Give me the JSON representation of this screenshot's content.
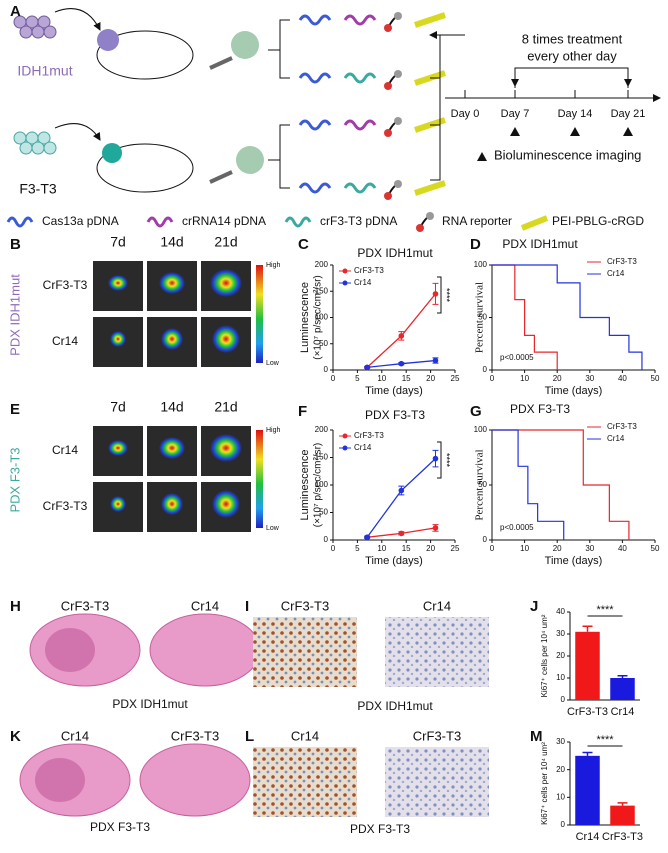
{
  "panel_labels": [
    "A",
    "B",
    "C",
    "D",
    "E",
    "F",
    "G",
    "H",
    "I",
    "J",
    "K",
    "L",
    "M"
  ],
  "schematic": {
    "tumors": [
      "IDH1mut",
      "F3-T3"
    ],
    "timeline": {
      "days": [
        "Day 0",
        "Day 7",
        "Day 14",
        "Day 21"
      ],
      "treatment": "8 times treatment",
      "schedule": "every other day",
      "imaging": "Bioluminescence imaging"
    },
    "legend": [
      "Cas13a pDNA",
      "crRNA14 pDNA",
      "crF3-T3 pDNA",
      "RNA reporter",
      "PEI-PBLG-cRGD"
    ]
  },
  "imaging": [
    {
      "model": "PDX IDH1mut",
      "columns": [
        "7d",
        "14d",
        "21d"
      ],
      "rows": [
        "CrF3-T3",
        "Cr14"
      ],
      "scale_high": "High",
      "scale_low": "Low"
    },
    {
      "model": "PDX F3-T3",
      "columns": [
        "7d",
        "14d",
        "21d"
      ],
      "rows": [
        "Cr14",
        "CrF3-T3"
      ],
      "scale_high": "High",
      "scale_low": "Low"
    }
  ],
  "histology": [
    {
      "groups": [
        "CrF3-T3",
        "Cr14"
      ],
      "caption": "PDX IDH1mut"
    },
    {
      "groups": [
        "CrF3-T3",
        "Cr14"
      ],
      "caption": "PDX IDH1mut"
    },
    {
      "groups": [
        "Cr14",
        "CrF3-T3"
      ],
      "caption": "PDX F3-T3"
    },
    {
      "groups": [
        "Cr14",
        "CrF3-T3"
      ],
      "caption": "PDX F3-T3"
    }
  ],
  "chart_data": [
    {
      "type": "line",
      "title": "PDX IDH1mut",
      "xlabel": "Time (days)",
      "ylabel": "Luminescence",
      "ylabel_unit": "(×10⁷ p/sec/cm²/sr)",
      "annotation": "****",
      "legend": "upper left",
      "x": [
        7,
        14,
        21
      ],
      "xlim": [
        0,
        25
      ],
      "xticks": [
        0,
        5,
        10,
        15,
        20,
        25
      ],
      "ylim": [
        0,
        200
      ],
      "yticks": [
        0,
        50,
        100,
        150,
        200
      ],
      "series": [
        {
          "name": "CrF3-T3",
          "color": "#e8262b",
          "values": [
            5,
            65,
            145
          ],
          "errors": [
            2,
            8,
            20
          ]
        },
        {
          "name": "Cr14",
          "color": "#2233dd",
          "values": [
            5,
            12,
            18
          ],
          "errors": [
            1,
            2,
            5
          ]
        }
      ]
    },
    {
      "type": "survival",
      "title": "PDX IDH1mut",
      "xlabel": "Time (days)",
      "ylabel": "Percent survival",
      "annotation": "p<0.0005",
      "legend": "upper right",
      "xlim": [
        0,
        50
      ],
      "xticks": [
        0,
        10,
        20,
        30,
        40,
        50
      ],
      "ylim": [
        0,
        100
      ],
      "yticks": [
        0,
        50,
        100
      ],
      "series": [
        {
          "name": "CrF3-T3",
          "color": "#e8262b",
          "x": [
            0,
            7,
            10,
            13,
            20
          ],
          "values": [
            100,
            67,
            33,
            17,
            0
          ]
        },
        {
          "name": "Cr14",
          "color": "#2233dd",
          "x": [
            0,
            20,
            27,
            36,
            42,
            46
          ],
          "values": [
            100,
            83,
            50,
            33,
            17,
            0
          ]
        }
      ]
    },
    {
      "type": "line",
      "title": "PDX F3-T3",
      "xlabel": "Time (days)",
      "ylabel": "Luminescence",
      "ylabel_unit": "(×10⁷ p/sec/cm²/sr)",
      "annotation": "****",
      "legend": "upper left",
      "x": [
        7,
        14,
        21
      ],
      "xlim": [
        0,
        25
      ],
      "xticks": [
        0,
        5,
        10,
        15,
        20,
        25
      ],
      "ylim": [
        0,
        200
      ],
      "yticks": [
        0,
        50,
        100,
        150,
        200
      ],
      "series": [
        {
          "name": "CrF3-T3",
          "color": "#e8262b",
          "values": [
            5,
            12,
            22
          ],
          "errors": [
            1,
            3,
            6
          ]
        },
        {
          "name": "Cr14",
          "color": "#2233dd",
          "values": [
            5,
            90,
            148
          ],
          "errors": [
            2,
            8,
            15
          ]
        }
      ]
    },
    {
      "type": "survival",
      "title": "PDX F3-T3",
      "xlabel": "Time (days)",
      "ylabel": "Percent survival",
      "annotation": "p<0.0005",
      "legend": "upper right",
      "xlim": [
        0,
        50
      ],
      "xticks": [
        0,
        10,
        20,
        30,
        40,
        50
      ],
      "ylim": [
        0,
        100
      ],
      "yticks": [
        0,
        50,
        100
      ],
      "series": [
        {
          "name": "CrF3-T3",
          "color": "#e8262b",
          "x": [
            0,
            28,
            36,
            42
          ],
          "values": [
            100,
            50,
            17,
            0
          ]
        },
        {
          "name": "Cr14",
          "color": "#2233dd",
          "x": [
            0,
            8,
            11,
            14,
            22
          ],
          "values": [
            100,
            67,
            33,
            17,
            0
          ]
        }
      ]
    },
    {
      "type": "bar",
      "ylabel": "Ki67⁺ cells per 10⁴ um²",
      "annotation": "****",
      "categories": [
        "CrF3-T3",
        "Cr14"
      ],
      "values": [
        31,
        10
      ],
      "errors": [
        2.5,
        1
      ],
      "colors": [
        "#f01818",
        "#1a1adf"
      ],
      "ylim": [
        0,
        40
      ],
      "yticks": [
        0,
        10,
        20,
        30,
        40
      ]
    },
    {
      "type": "bar",
      "ylabel": "Ki67⁺ cells per 10⁴ um²",
      "annotation": "****",
      "categories": [
        "Cr14",
        "CrF3-T3"
      ],
      "values": [
        25,
        7
      ],
      "errors": [
        1.2,
        1
      ],
      "colors": [
        "#1a1adf",
        "#f01818"
      ],
      "ylim": [
        0,
        30
      ],
      "yticks": [
        0,
        10,
        20,
        30
      ]
    }
  ]
}
